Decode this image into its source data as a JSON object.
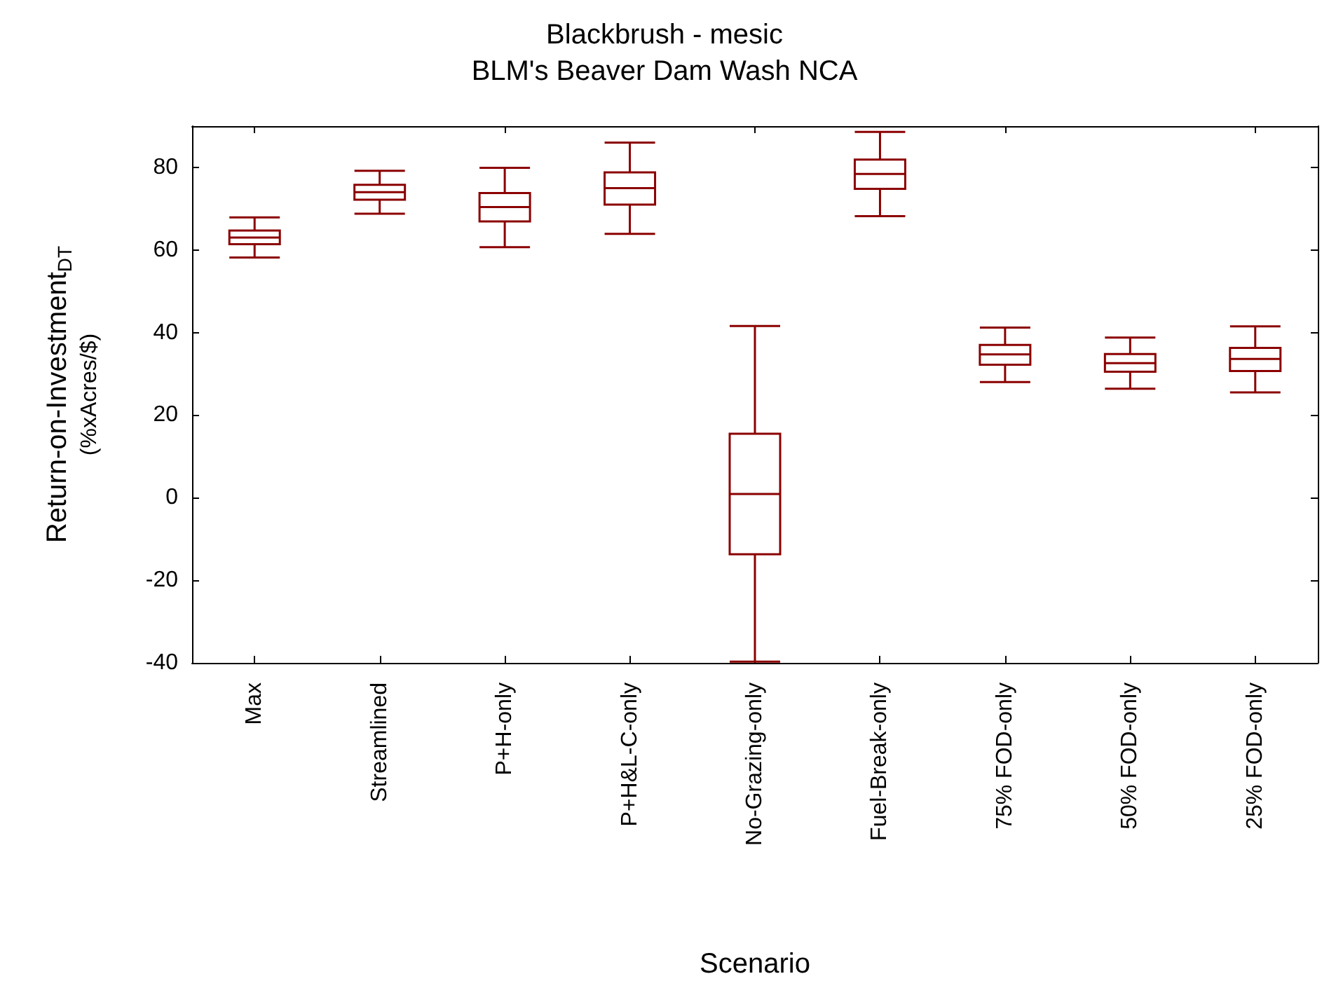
{
  "chart_data": {
    "type": "box",
    "title": "Blackbrush - mesic",
    "subtitle": "BLM's Beaver Dam Wash NCA",
    "xlabel": "Scenario",
    "ylabel": "Return-on-Investment$_{DT}$\n(%xAcres/$)",
    "categories": [
      "Max",
      "Streamlined",
      "P+H-only",
      "P+H&L-C-only",
      "No-Grazing-only",
      "Fuel-Break-only",
      "75% FOD-only",
      "50% FOD-only",
      "25% FOD-only"
    ],
    "boxes": [
      {
        "low": 58.2,
        "q1": 61.4,
        "median": 63.0,
        "q3": 64.7,
        "high": 67.9
      },
      {
        "low": 68.8,
        "q1": 72.2,
        "median": 74.0,
        "q3": 75.8,
        "high": 79.2
      },
      {
        "low": 60.7,
        "q1": 66.9,
        "median": 70.4,
        "q3": 73.8,
        "high": 79.9
      },
      {
        "low": 63.9,
        "q1": 71.0,
        "median": 75.0,
        "q3": 78.8,
        "high": 86.0
      },
      {
        "low": -39.7,
        "q1": -13.7,
        "median": 0.9,
        "q3": 15.5,
        "high": 41.6
      },
      {
        "low": 68.2,
        "q1": 74.8,
        "median": 78.4,
        "q3": 81.9,
        "high": 88.6
      },
      {
        "low": 28.0,
        "q1": 32.2,
        "median": 34.7,
        "q3": 37.0,
        "high": 41.2
      },
      {
        "low": 26.4,
        "q1": 30.5,
        "median": 32.6,
        "q3": 34.8,
        "high": 38.8
      },
      {
        "low": 25.5,
        "q1": 30.7,
        "median": 33.6,
        "q3": 36.3,
        "high": 41.5
      }
    ],
    "color": "#8b0000",
    "ylim": [
      -40,
      90
    ],
    "yticks": [
      -40,
      -20,
      0,
      20,
      40,
      60,
      80
    ],
    "grid": false
  }
}
